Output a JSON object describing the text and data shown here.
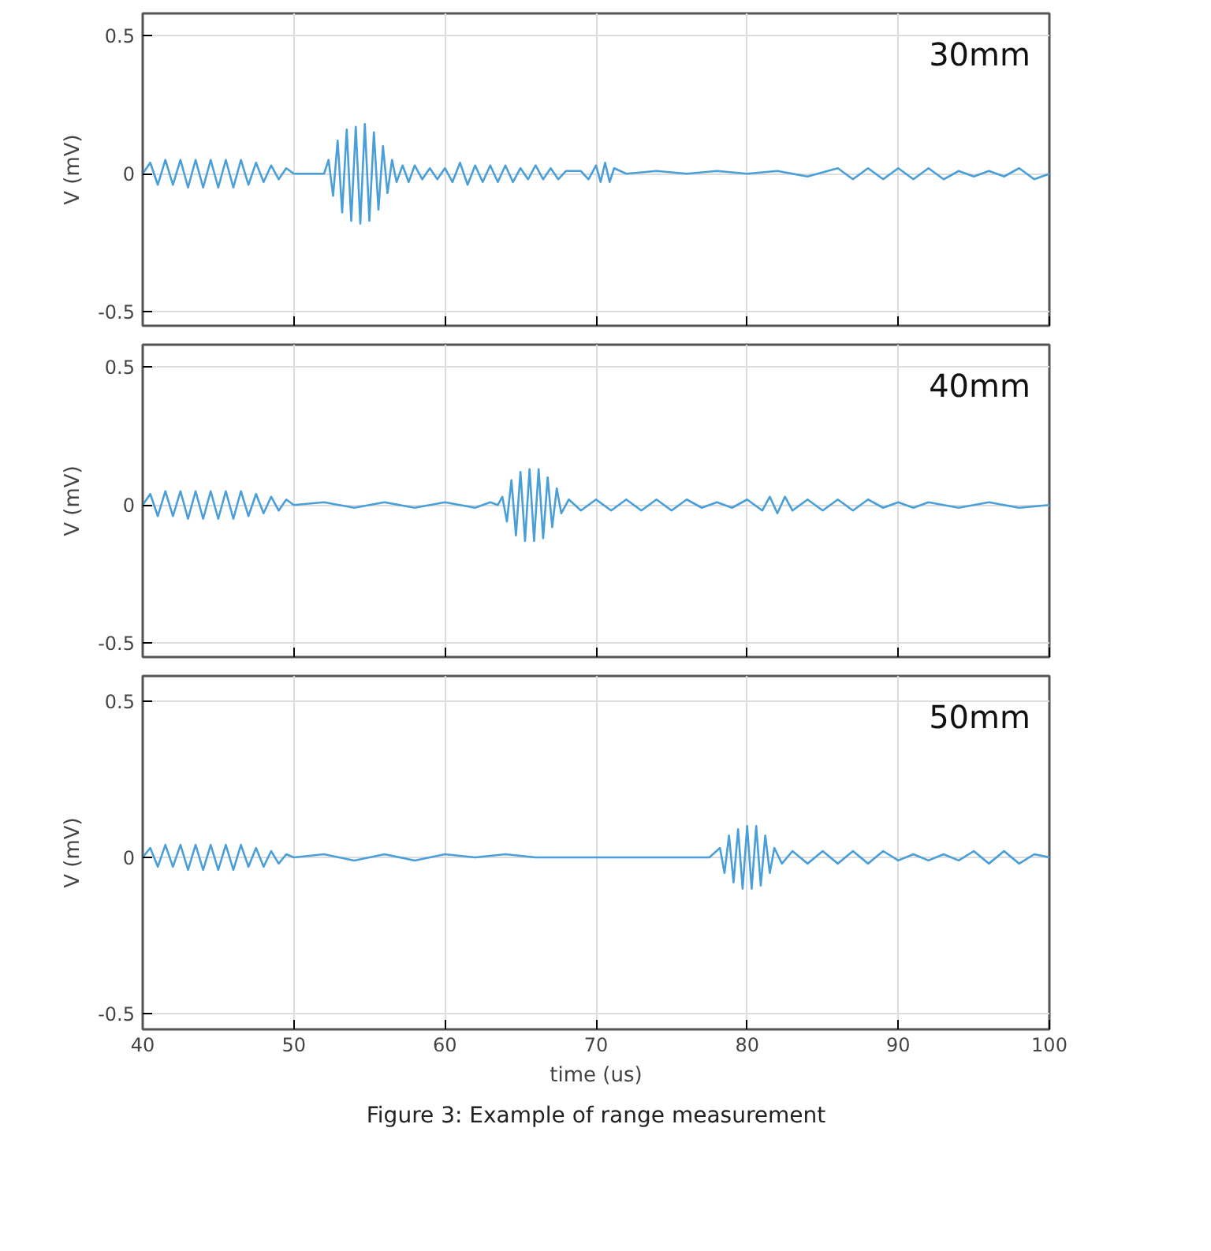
{
  "chart_data": [
    {
      "type": "line",
      "ylabel": "V (mV)",
      "annotations": [
        "30mm"
      ],
      "xlim": [
        40,
        100
      ],
      "xticks": [
        40,
        50,
        60,
        70,
        80,
        90,
        100
      ],
      "ylim": [
        -0.55,
        0.58
      ],
      "yticks": [
        -0.5,
        0,
        0.5
      ],
      "grid": true,
      "tick_labels": "y",
      "series": [
        {
          "color": "#4a9fd8",
          "x": [
            40,
            40.5,
            41,
            41.5,
            42,
            42.5,
            43,
            43.5,
            44,
            44.5,
            45,
            45.5,
            46,
            46.5,
            47,
            47.5,
            48,
            48.5,
            49,
            49.5,
            50,
            51,
            52,
            52.3,
            52.6,
            52.9,
            53.2,
            53.5,
            53.8,
            54.1,
            54.4,
            54.7,
            55.0,
            55.3,
            55.6,
            55.9,
            56.2,
            56.5,
            56.8,
            57.2,
            57.6,
            58,
            58.5,
            59,
            59.5,
            60,
            60.5,
            61,
            61.5,
            62,
            62.5,
            63,
            63.5,
            64,
            64.5,
            65,
            65.5,
            66,
            66.5,
            67,
            67.5,
            68,
            69,
            69.5,
            70,
            70.3,
            70.6,
            70.9,
            71.2,
            72,
            74,
            76,
            78,
            80,
            82,
            84,
            86,
            87,
            88,
            89,
            90,
            91,
            92,
            93,
            94,
            95,
            96,
            97,
            98,
            99,
            100
          ],
          "values": [
            0,
            0.04,
            -0.04,
            0.05,
            -0.04,
            0.05,
            -0.05,
            0.05,
            -0.05,
            0.05,
            -0.05,
            0.05,
            -0.05,
            0.05,
            -0.04,
            0.04,
            -0.03,
            0.03,
            -0.02,
            0.02,
            0,
            0,
            0,
            0.05,
            -0.08,
            0.12,
            -0.14,
            0.16,
            -0.17,
            0.17,
            -0.18,
            0.18,
            -0.17,
            0.15,
            -0.13,
            0.1,
            -0.07,
            0.05,
            -0.03,
            0.03,
            -0.03,
            0.03,
            -0.02,
            0.02,
            -0.02,
            0.02,
            -0.03,
            0.04,
            -0.04,
            0.03,
            -0.03,
            0.03,
            -0.03,
            0.03,
            -0.03,
            0.02,
            -0.02,
            0.03,
            -0.02,
            0.02,
            -0.02,
            0.01,
            0.01,
            -0.02,
            0.03,
            -0.03,
            0.04,
            -0.03,
            0.02,
            0,
            0.01,
            0,
            0.01,
            0,
            0.01,
            -0.01,
            0.02,
            -0.02,
            0.02,
            -0.02,
            0.02,
            -0.02,
            0.02,
            -0.02,
            0.01,
            -0.01,
            0.01,
            -0.01,
            0.02,
            -0.02,
            0
          ]
        }
      ]
    },
    {
      "type": "line",
      "ylabel": "V (mV)",
      "annotations": [
        "40mm"
      ],
      "xlim": [
        40,
        100
      ],
      "xticks": [
        40,
        50,
        60,
        70,
        80,
        90,
        100
      ],
      "ylim": [
        -0.55,
        0.58
      ],
      "yticks": [
        -0.5,
        0,
        0.5
      ],
      "grid": true,
      "tick_labels": "y",
      "series": [
        {
          "color": "#4a9fd8",
          "x": [
            40,
            40.5,
            41,
            41.5,
            42,
            42.5,
            43,
            43.5,
            44,
            44.5,
            45,
            45.5,
            46,
            46.5,
            47,
            47.5,
            48,
            48.5,
            49,
            49.5,
            50,
            52,
            54,
            56,
            58,
            60,
            62,
            63,
            63.5,
            63.8,
            64.1,
            64.4,
            64.7,
            65.0,
            65.3,
            65.6,
            65.9,
            66.2,
            66.5,
            66.8,
            67.1,
            67.4,
            67.7,
            68.2,
            69,
            70,
            71,
            72,
            73,
            74,
            75,
            76,
            77,
            78,
            79,
            80,
            81,
            81.5,
            82,
            82.5,
            83,
            84,
            85,
            86,
            87,
            88,
            89,
            90,
            91,
            92,
            94,
            96,
            98,
            100
          ],
          "values": [
            0,
            0.04,
            -0.04,
            0.05,
            -0.04,
            0.05,
            -0.05,
            0.05,
            -0.05,
            0.05,
            -0.05,
            0.05,
            -0.05,
            0.05,
            -0.04,
            0.04,
            -0.03,
            0.03,
            -0.02,
            0.02,
            0,
            0.01,
            -0.01,
            0.01,
            -0.01,
            0.01,
            -0.01,
            0.01,
            0,
            0.03,
            -0.06,
            0.09,
            -0.11,
            0.12,
            -0.13,
            0.13,
            -0.13,
            0.13,
            -0.12,
            0.1,
            -0.08,
            0.06,
            -0.03,
            0.02,
            -0.02,
            0.02,
            -0.02,
            0.02,
            -0.02,
            0.02,
            -0.02,
            0.02,
            -0.01,
            0.01,
            -0.01,
            0.02,
            -0.02,
            0.03,
            -0.03,
            0.03,
            -0.02,
            0.02,
            -0.02,
            0.02,
            -0.02,
            0.02,
            -0.01,
            0.01,
            -0.01,
            0.01,
            -0.01,
            0.01,
            -0.01,
            0
          ]
        }
      ]
    },
    {
      "type": "line",
      "ylabel": "V (mV)",
      "xlabel": "time (us)",
      "annotations": [
        "50mm",
        "Figure 3: Example of range measurement"
      ],
      "xlim": [
        40,
        100
      ],
      "xticks": [
        40,
        50,
        60,
        70,
        80,
        90,
        100
      ],
      "ylim": [
        -0.55,
        0.58
      ],
      "yticks": [
        -0.5,
        0,
        0.5
      ],
      "grid": true,
      "series": [
        {
          "color": "#4a9fd8",
          "x": [
            40,
            40.5,
            41,
            41.5,
            42,
            42.5,
            43,
            43.5,
            44,
            44.5,
            45,
            45.5,
            46,
            46.5,
            47,
            47.5,
            48,
            48.5,
            49,
            49.5,
            50,
            52,
            54,
            56,
            58,
            60,
            62,
            64,
            66,
            68,
            70,
            72,
            74,
            76,
            77.5,
            78.2,
            78.5,
            78.8,
            79.1,
            79.4,
            79.7,
            80.0,
            80.3,
            80.6,
            80.9,
            81.2,
            81.5,
            81.8,
            82.3,
            83,
            84,
            85,
            86,
            87,
            88,
            89,
            90,
            91,
            92,
            93,
            94,
            95,
            96,
            97,
            98,
            99,
            100
          ],
          "values": [
            0,
            0.03,
            -0.03,
            0.04,
            -0.03,
            0.04,
            -0.04,
            0.04,
            -0.04,
            0.04,
            -0.04,
            0.04,
            -0.04,
            0.04,
            -0.03,
            0.03,
            -0.03,
            0.02,
            -0.02,
            0.01,
            0,
            0.01,
            -0.01,
            0.01,
            -0.01,
            0.01,
            0,
            0.01,
            0,
            0,
            0,
            0,
            0,
            0,
            0,
            0.03,
            -0.05,
            0.07,
            -0.08,
            0.09,
            -0.1,
            0.1,
            -0.1,
            0.1,
            -0.09,
            0.07,
            -0.05,
            0.03,
            -0.02,
            0.02,
            -0.02,
            0.02,
            -0.02,
            0.02,
            -0.02,
            0.02,
            -0.01,
            0.01,
            -0.01,
            0.01,
            -0.01,
            0.02,
            -0.02,
            0.02,
            -0.02,
            0.01,
            0
          ]
        }
      ]
    }
  ]
}
